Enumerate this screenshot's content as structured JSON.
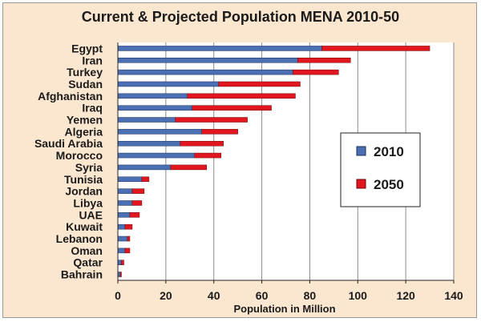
{
  "chart_data": {
    "type": "bar",
    "orientation": "horizontal",
    "stacked": true,
    "title": "Current & Projected Population MENA 2010-50",
    "xlabel": "Population in Million",
    "ylabel": "",
    "xlim": [
      0,
      140
    ],
    "xticks": [
      "0",
      "20",
      "40",
      "60",
      "80",
      "100",
      "120",
      "140"
    ],
    "grid": "vertical",
    "legend_position": "right",
    "categories": [
      "Egypt",
      "Iran",
      "Turkey",
      "Sudan",
      "Afghanistan",
      "Iraq",
      "Yemen",
      "Algeria",
      "Saudi Arabia",
      "Morocco",
      "Syria",
      "Tunisia",
      "Jordan",
      "Libya",
      "UAE",
      "Kuwait",
      "Lebanon",
      "Oman",
      "Qatar",
      "Bahrain"
    ],
    "series": [
      {
        "name": "2010",
        "color": "#4a6fb3",
        "values": [
          85,
          75,
          73,
          42,
          29,
          31,
          24,
          35,
          26,
          32,
          22,
          10,
          6,
          6,
          5,
          3,
          4,
          3,
          1.5,
          1
        ]
      },
      {
        "name": "2050",
        "color": "#e2161f",
        "values": [
          45,
          22,
          19,
          34,
          45,
          33,
          30,
          15,
          18,
          11,
          15,
          3,
          5,
          4,
          4,
          3,
          1,
          2,
          1,
          0.5
        ]
      }
    ]
  }
}
